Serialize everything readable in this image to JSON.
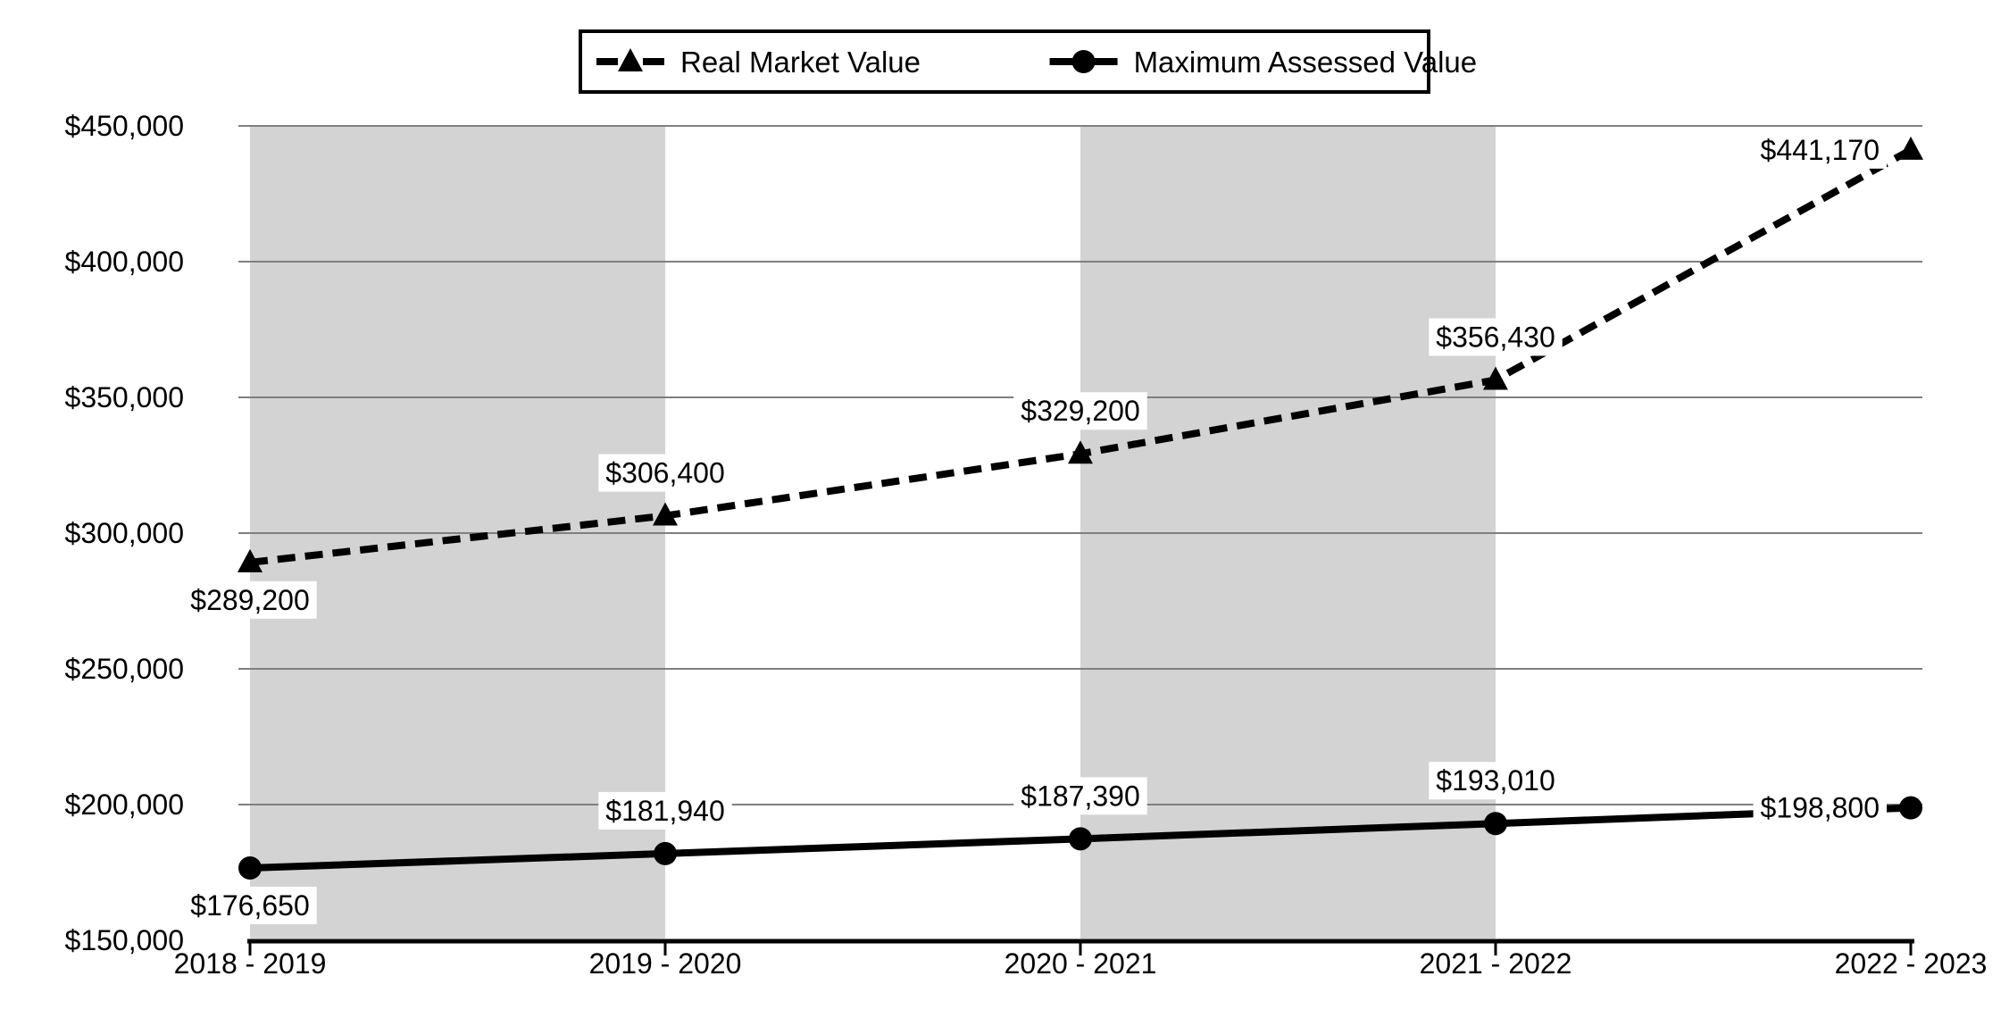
{
  "chart_data": {
    "type": "line",
    "title": "",
    "categories": [
      "2018 - 2019",
      "2019 - 2020",
      "2020 - 2021",
      "2021 - 2022",
      "2022 - 2023"
    ],
    "series": [
      {
        "name": "Real Market Value",
        "values": [
          289200,
          306400,
          329200,
          356430,
          441170
        ],
        "labels": [
          "$289,200",
          "$306,400",
          "$329,200",
          "$356,430",
          "$441,170"
        ],
        "line_style": "dashed",
        "marker": "triangle",
        "label_positions": [
          "below",
          "above",
          "above",
          "above",
          "left"
        ]
      },
      {
        "name": "Maximum Assessed Value",
        "values": [
          176650,
          181940,
          187390,
          193010,
          198800
        ],
        "labels": [
          "$176,650",
          "$181,940",
          "$187,390",
          "$193,010",
          "$198,800"
        ],
        "line_style": "solid",
        "marker": "circle",
        "label_positions": [
          "below",
          "above",
          "above",
          "above",
          "left"
        ]
      }
    ],
    "y_axis": {
      "min": 150000,
      "max": 450000,
      "step": 50000,
      "tick_labels": [
        "$150,000",
        "$200,000",
        "$250,000",
        "$300,000",
        "$350,000",
        "$400,000",
        "$450,000"
      ]
    },
    "x_axis": {
      "tick_labels": [
        "2018 - 2019",
        "2019 - 2020",
        "2020 - 2021",
        "2021 - 2022",
        "2022 - 2023"
      ]
    },
    "legend_position": "top",
    "grid": true,
    "shaded_bands": [
      [
        0,
        1
      ],
      [
        2,
        3
      ]
    ],
    "colors": {
      "series": "#000000",
      "gridline": "#7f7f7f",
      "band": "#d3d3d3",
      "background": "#ffffff",
      "label_bg": "#ffffff",
      "axis": "#000000",
      "legend_border": "#000000"
    }
  }
}
